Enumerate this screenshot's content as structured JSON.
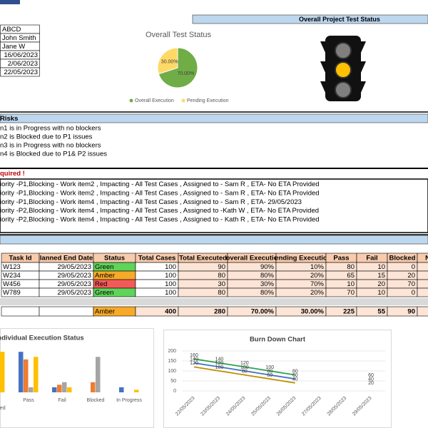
{
  "header": {
    "title": "Overall Project Test Status"
  },
  "info": [
    "ABCD",
    "John Smith",
    "Jane W",
    "16/06/2023",
    "2/06/2023",
    "22/05/2023"
  ],
  "risks": {
    "title": "Risks",
    "items": [
      "n1 is in Progress with no blockers",
      "n2 is Blocked due to P1 issues",
      "n3 is in Progress with no blockers",
      "n4 is Blocked due to P1& P2 issues"
    ]
  },
  "blockers": {
    "title": "quired !",
    "items": [
      "iority -P1,Blocking - Work item2 , Impacting - All Test Cases , Assigned to - Sam R , ETA- No ETA Provided",
      "iority -P1,Blocking - Work item2 , Impacting - All Test Cases , Assigned to - Sam R , ETA- No ETA Provided",
      "iority -P1,Blocking - Work item4 , Impacting - All Test Cases , Assigned to - Sam R , ETA- 29/05/2023",
      "iority -P2,Blocking - Work item4 , Impacting - All Test Cases , Assigned to -Kath W , ETA- No ETA Provided",
      "iority -P2,Blocking - Work item4 , Impacting - All Test Cases , Assigned to - Kath R , ETA- No ETA Provided"
    ]
  },
  "table": {
    "columns": [
      "Task Id",
      "lanned End Date",
      "Status",
      "Total Cases",
      "Total Executed",
      "overall Executio",
      "ending Executio",
      "Pass",
      "Fail",
      "Blocked",
      "No"
    ],
    "rows": [
      [
        "W123",
        "29/05/2023",
        "Green",
        100,
        90,
        "90%",
        "10%",
        80,
        10,
        0
      ],
      [
        "W234",
        "29/05/2023",
        "Amber",
        100,
        80,
        "80%",
        "20%",
        65,
        15,
        20
      ],
      [
        "W456",
        "29/05/2023",
        "Red",
        100,
        30,
        "30%",
        "70%",
        10,
        20,
        70
      ],
      [
        "W789",
        "29/05/2023",
        "Green",
        100,
        80,
        "80%",
        "20%",
        70,
        10,
        0
      ]
    ],
    "total": {
      "status": "Amber",
      "values": [
        400,
        280,
        "70.00%",
        "30.00%",
        225,
        55,
        90
      ]
    },
    "status_colors": {
      "Green": "#5fd35a",
      "Amber": "#f7a928",
      "Red": "#f25a5a"
    }
  },
  "chart_data": [
    {
      "type": "pie",
      "title": "Overall Test Status",
      "categories": [
        "Overall Execution",
        "Pending Execution"
      ],
      "values": [
        70,
        30
      ],
      "value_labels": [
        "70.00%",
        "30.00%"
      ],
      "colors": [
        "#70ad47",
        "#ffd966"
      ],
      "legend": "bottom"
    },
    {
      "type": "bar",
      "title": "ndividual Execution Status",
      "categories": [
        "Total Executed",
        "Pass",
        "Fail",
        "Blocked",
        "In Progress"
      ],
      "series": [
        {
          "color": "#4472c4",
          "values": [
            90,
            80,
            10,
            0,
            10
          ]
        },
        {
          "color": "#ed7d31",
          "values": [
            80,
            65,
            15,
            20,
            0
          ]
        },
        {
          "color": "#a5a5a5",
          "values": [
            30,
            10,
            20,
            70,
            0
          ]
        },
        {
          "color": "#ffc000",
          "values": [
            80,
            70,
            10,
            0,
            5
          ]
        }
      ],
      "ylim": [
        0,
        100
      ]
    },
    {
      "type": "line",
      "title": "Burn Down Chart",
      "categories": [
        "22/05/2023",
        "23/05/2023",
        "24/05/2023",
        "25/05/2023",
        "26/05/2023",
        "27/05/2023",
        "28/05/2023",
        "29/05/2023"
      ],
      "series": [
        {
          "color": "#2ea44f",
          "values": [
            160,
            140,
            120,
            100,
            80,
            null,
            null,
            60
          ]
        },
        {
          "color": "#4472c4",
          "values": [
            140,
            120,
            100,
            80,
            60,
            null,
            null,
            40
          ]
        },
        {
          "color": "#bf9000",
          "values": [
            120,
            100,
            80,
            60,
            40,
            null,
            null,
            20
          ]
        }
      ],
      "ylim": [
        0,
        200
      ],
      "yticks": [
        0,
        50,
        100,
        150,
        200
      ],
      "grid": true,
      "data_labels": true
    }
  ]
}
